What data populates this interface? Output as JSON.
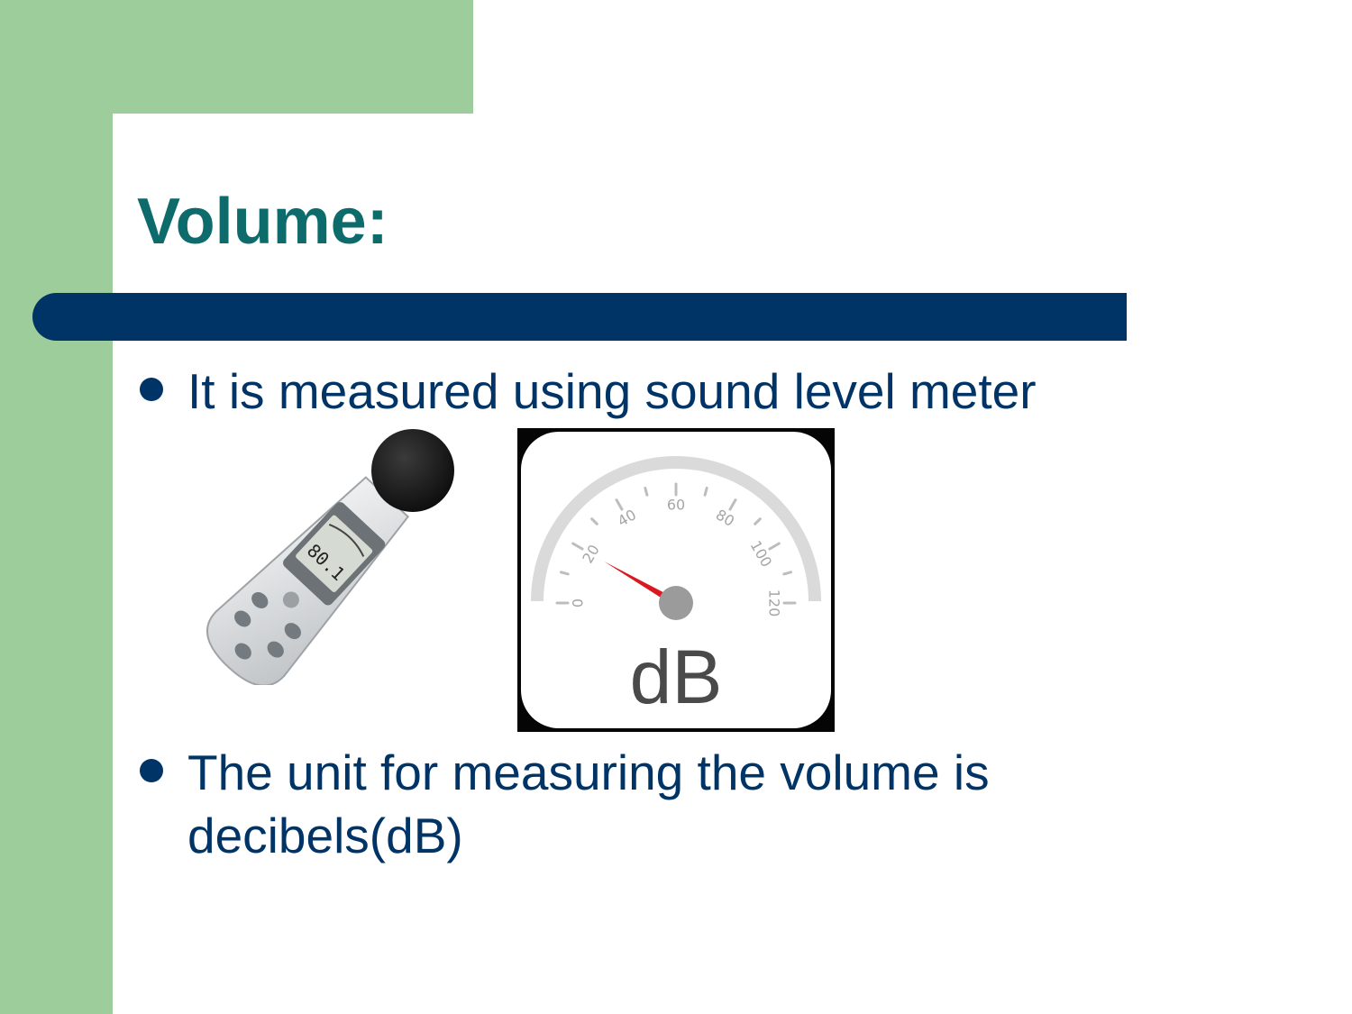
{
  "slide": {
    "title": "Volume:",
    "bullets": [
      {
        "text": "It is measured using sound level meter"
      },
      {
        "text": "The unit for measuring the volume is decibels(dB)"
      }
    ]
  },
  "images": {
    "sound_level_meter": {
      "display_reading": "80.1"
    },
    "decibel_dial": {
      "scale_labels": [
        "0",
        "20",
        "40",
        "60",
        "80",
        "100",
        "120"
      ],
      "unit_label": "dB",
      "needle_value": 20
    }
  },
  "colors": {
    "accent_green": "#9dcd9b",
    "title_teal": "#0e6b6b",
    "navy": "#013466",
    "needle_red": "#d8191f"
  }
}
